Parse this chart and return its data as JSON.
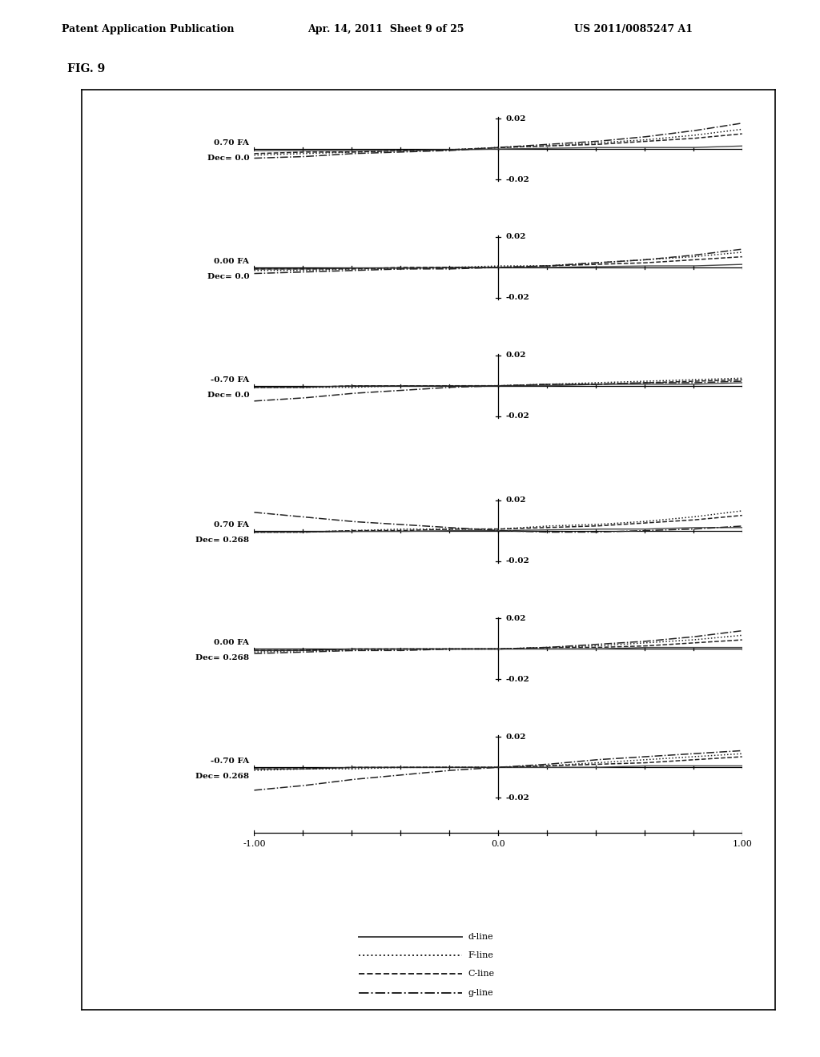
{
  "title": "FIG. 9",
  "subplots": [
    {
      "label_fa": "0.70 FA",
      "label_dec": "Dec= 0.0",
      "d": [
        [
          -1.0,
          -0.8,
          -0.6,
          -0.4,
          -0.2,
          0.0,
          0.2,
          0.4,
          0.6,
          0.8,
          1.0
        ],
        [
          -0.001,
          -0.001,
          -0.001,
          -0.001,
          -0.0005,
          0.0,
          0.0005,
          0.001,
          0.001,
          0.001,
          0.002
        ]
      ],
      "F": [
        [
          -1.0,
          -0.8,
          -0.6,
          -0.4,
          -0.2,
          0.0,
          0.2,
          0.4,
          0.6,
          0.8,
          1.0
        ],
        [
          -0.004,
          -0.003,
          -0.002,
          -0.001,
          -0.0005,
          0.001,
          0.002,
          0.004,
          0.006,
          0.009,
          0.013
        ]
      ],
      "C": [
        [
          -1.0,
          -0.8,
          -0.6,
          -0.4,
          -0.2,
          0.0,
          0.2,
          0.4,
          0.6,
          0.8,
          1.0
        ],
        [
          -0.003,
          -0.002,
          -0.002,
          -0.001,
          -0.0005,
          0.001,
          0.002,
          0.003,
          0.005,
          0.007,
          0.01
        ]
      ],
      "g": [
        [
          -1.0,
          -0.8,
          -0.6,
          -0.4,
          -0.2,
          0.0,
          0.2,
          0.4,
          0.6,
          0.8,
          1.0
        ],
        [
          -0.006,
          -0.005,
          -0.003,
          -0.002,
          -0.001,
          0.001,
          0.003,
          0.005,
          0.008,
          0.012,
          0.017
        ]
      ]
    },
    {
      "label_fa": "0.00 FA",
      "label_dec": "Dec= 0.0",
      "d": [
        [
          -1.0,
          -0.8,
          -0.6,
          -0.4,
          -0.2,
          0.0,
          0.2,
          0.4,
          0.6,
          0.8,
          1.0
        ],
        [
          -0.001,
          -0.001,
          -0.0005,
          -0.0005,
          0.0,
          0.0,
          0.0,
          0.0005,
          0.001,
          0.001,
          0.002
        ]
      ],
      "F": [
        [
          -1.0,
          -0.8,
          -0.6,
          -0.4,
          -0.2,
          0.0,
          0.2,
          0.4,
          0.6,
          0.8,
          1.0
        ],
        [
          -0.002,
          -0.002,
          -0.001,
          -0.001,
          0.0,
          0.001,
          0.001,
          0.003,
          0.005,
          0.007,
          0.01
        ]
      ],
      "C": [
        [
          -1.0,
          -0.8,
          -0.6,
          -0.4,
          -0.2,
          0.0,
          0.2,
          0.4,
          0.6,
          0.8,
          1.0
        ],
        [
          -0.001,
          -0.001,
          -0.001,
          0.0,
          0.0,
          0.0,
          0.001,
          0.002,
          0.003,
          0.005,
          0.007
        ]
      ],
      "g": [
        [
          -1.0,
          -0.8,
          -0.6,
          -0.4,
          -0.2,
          0.0,
          0.2,
          0.4,
          0.6,
          0.8,
          1.0
        ],
        [
          -0.004,
          -0.003,
          -0.002,
          -0.001,
          -0.001,
          0.0,
          0.001,
          0.003,
          0.005,
          0.008,
          0.012
        ]
      ]
    },
    {
      "label_fa": "-0.70 FA",
      "label_dec": "Dec= 0.0",
      "d": [
        [
          -1.0,
          -0.8,
          -0.6,
          -0.4,
          -0.2,
          0.0,
          0.2,
          0.4,
          0.6,
          0.8,
          1.0
        ],
        [
          -0.001,
          -0.001,
          0.0,
          0.0,
          0.0,
          0.0,
          0.0,
          0.001,
          0.001,
          0.001,
          0.002
        ]
      ],
      "F": [
        [
          -1.0,
          -0.8,
          -0.6,
          -0.4,
          -0.2,
          0.0,
          0.2,
          0.4,
          0.6,
          0.8,
          1.0
        ],
        [
          -0.001,
          -0.001,
          -0.001,
          0.0,
          0.0,
          0.0,
          0.001,
          0.002,
          0.003,
          0.004,
          0.005
        ]
      ],
      "C": [
        [
          -1.0,
          -0.8,
          -0.6,
          -0.4,
          -0.2,
          0.0,
          0.2,
          0.4,
          0.6,
          0.8,
          1.0
        ],
        [
          -0.001,
          -0.001,
          0.0,
          0.0,
          0.0,
          0.0,
          0.001,
          0.001,
          0.002,
          0.003,
          0.004
        ]
      ],
      "g": [
        [
          -1.0,
          -0.8,
          -0.6,
          -0.4,
          -0.2,
          0.0,
          0.2,
          0.4,
          0.6,
          0.8,
          1.0
        ],
        [
          -0.01,
          -0.008,
          -0.005,
          -0.003,
          -0.001,
          0.0,
          0.001,
          0.001,
          0.002,
          0.002,
          0.003
        ]
      ]
    },
    {
      "label_fa": "0.70 FA",
      "label_dec": "Dec= 0.268",
      "d": [
        [
          -1.0,
          -0.8,
          -0.6,
          -0.4,
          -0.2,
          0.0,
          0.2,
          0.4,
          0.6,
          0.8,
          1.0
        ],
        [
          -0.001,
          -0.001,
          -0.0005,
          -0.0005,
          0.0,
          0.0,
          0.0005,
          0.001,
          0.001,
          0.002,
          0.002
        ]
      ],
      "F": [
        [
          -1.0,
          -0.8,
          -0.6,
          -0.4,
          -0.2,
          0.0,
          0.2,
          0.4,
          0.6,
          0.8,
          1.0
        ],
        [
          -0.001,
          -0.001,
          0.0,
          0.001,
          0.001,
          0.001,
          0.003,
          0.004,
          0.006,
          0.009,
          0.013
        ]
      ],
      "C": [
        [
          -1.0,
          -0.8,
          -0.6,
          -0.4,
          -0.2,
          0.0,
          0.2,
          0.4,
          0.6,
          0.8,
          1.0
        ],
        [
          -0.001,
          -0.001,
          0.0,
          0.0,
          0.001,
          0.001,
          0.002,
          0.003,
          0.005,
          0.007,
          0.01
        ]
      ],
      "g": [
        [
          -1.0,
          -0.8,
          -0.6,
          -0.4,
          -0.2,
          0.0,
          0.2,
          0.4,
          0.6,
          0.8,
          1.0
        ],
        [
          0.012,
          0.009,
          0.006,
          0.004,
          0.002,
          0.0,
          -0.001,
          -0.001,
          0.0,
          0.001,
          0.003
        ]
      ]
    },
    {
      "label_fa": "0.00 FA",
      "label_dec": "Dec= 0.268",
      "d": [
        [
          -1.0,
          -0.8,
          -0.6,
          -0.4,
          -0.2,
          0.0,
          0.2,
          0.4,
          0.6,
          0.8,
          1.0
        ],
        [
          -0.001,
          -0.001,
          0.0,
          0.0,
          0.0,
          0.0,
          0.0,
          0.0,
          0.001,
          0.001,
          0.001
        ]
      ],
      "F": [
        [
          -1.0,
          -0.8,
          -0.6,
          -0.4,
          -0.2,
          0.0,
          0.2,
          0.4,
          0.6,
          0.8,
          1.0
        ],
        [
          -0.002,
          -0.001,
          -0.001,
          0.0,
          0.0,
          0.0,
          0.001,
          0.002,
          0.004,
          0.006,
          0.009
        ]
      ],
      "C": [
        [
          -1.0,
          -0.8,
          -0.6,
          -0.4,
          -0.2,
          0.0,
          0.2,
          0.4,
          0.6,
          0.8,
          1.0
        ],
        [
          -0.001,
          -0.001,
          0.0,
          0.0,
          0.0,
          0.0,
          0.001,
          0.001,
          0.002,
          0.004,
          0.006
        ]
      ],
      "g": [
        [
          -1.0,
          -0.8,
          -0.6,
          -0.4,
          -0.2,
          0.0,
          0.2,
          0.4,
          0.6,
          0.8,
          1.0
        ],
        [
          -0.003,
          -0.002,
          -0.001,
          -0.001,
          0.0,
          0.0,
          0.001,
          0.003,
          0.005,
          0.008,
          0.012
        ]
      ]
    },
    {
      "label_fa": "-0.70 FA",
      "label_dec": "Dec= 0.268",
      "d": [
        [
          -1.0,
          -0.8,
          -0.6,
          -0.4,
          -0.2,
          0.0,
          0.2,
          0.4,
          0.6,
          0.8,
          1.0
        ],
        [
          -0.001,
          -0.001,
          0.0,
          0.0,
          0.0,
          0.0,
          0.0,
          0.0,
          0.001,
          0.001,
          0.001
        ]
      ],
      "F": [
        [
          -1.0,
          -0.8,
          -0.6,
          -0.4,
          -0.2,
          0.0,
          0.2,
          0.4,
          0.6,
          0.8,
          1.0
        ],
        [
          -0.002,
          -0.001,
          -0.001,
          0.0,
          0.0,
          0.0,
          0.001,
          0.003,
          0.005,
          0.007,
          0.009
        ]
      ],
      "C": [
        [
          -1.0,
          -0.8,
          -0.6,
          -0.4,
          -0.2,
          0.0,
          0.2,
          0.4,
          0.6,
          0.8,
          1.0
        ],
        [
          -0.001,
          -0.001,
          0.0,
          0.0,
          0.0,
          0.0,
          0.001,
          0.002,
          0.003,
          0.005,
          0.007
        ]
      ],
      "g": [
        [
          -1.0,
          -0.8,
          -0.6,
          -0.4,
          -0.2,
          0.0,
          0.2,
          0.4,
          0.6,
          0.8,
          1.0
        ],
        [
          -0.015,
          -0.012,
          -0.008,
          -0.005,
          -0.002,
          0.0,
          0.002,
          0.005,
          0.007,
          0.009,
          0.011
        ]
      ]
    }
  ],
  "xlim": [
    -1.0,
    1.0
  ],
  "ylim": [
    -0.025,
    0.025
  ],
  "xticks": [
    -1.0,
    -0.8,
    -0.6,
    -0.4,
    -0.2,
    0.0,
    0.2,
    0.4,
    0.6,
    0.8,
    1.0
  ],
  "xtick_labels": [
    "-1.00",
    "",
    "",
    "",
    "",
    "0.0",
    "",
    "",
    "",
    "",
    "1.00"
  ],
  "line_styles": {
    "d": {
      "linestyle": "-",
      "color": "#444444",
      "linewidth": 1.0
    },
    "F": {
      "linestyle": ":",
      "color": "#222222",
      "linewidth": 1.1
    },
    "C": {
      "linestyle": "--",
      "color": "#222222",
      "linewidth": 1.1
    },
    "g": {
      "linestyle": "-.",
      "color": "#222222",
      "linewidth": 1.1
    }
  },
  "background_color": "#ffffff"
}
